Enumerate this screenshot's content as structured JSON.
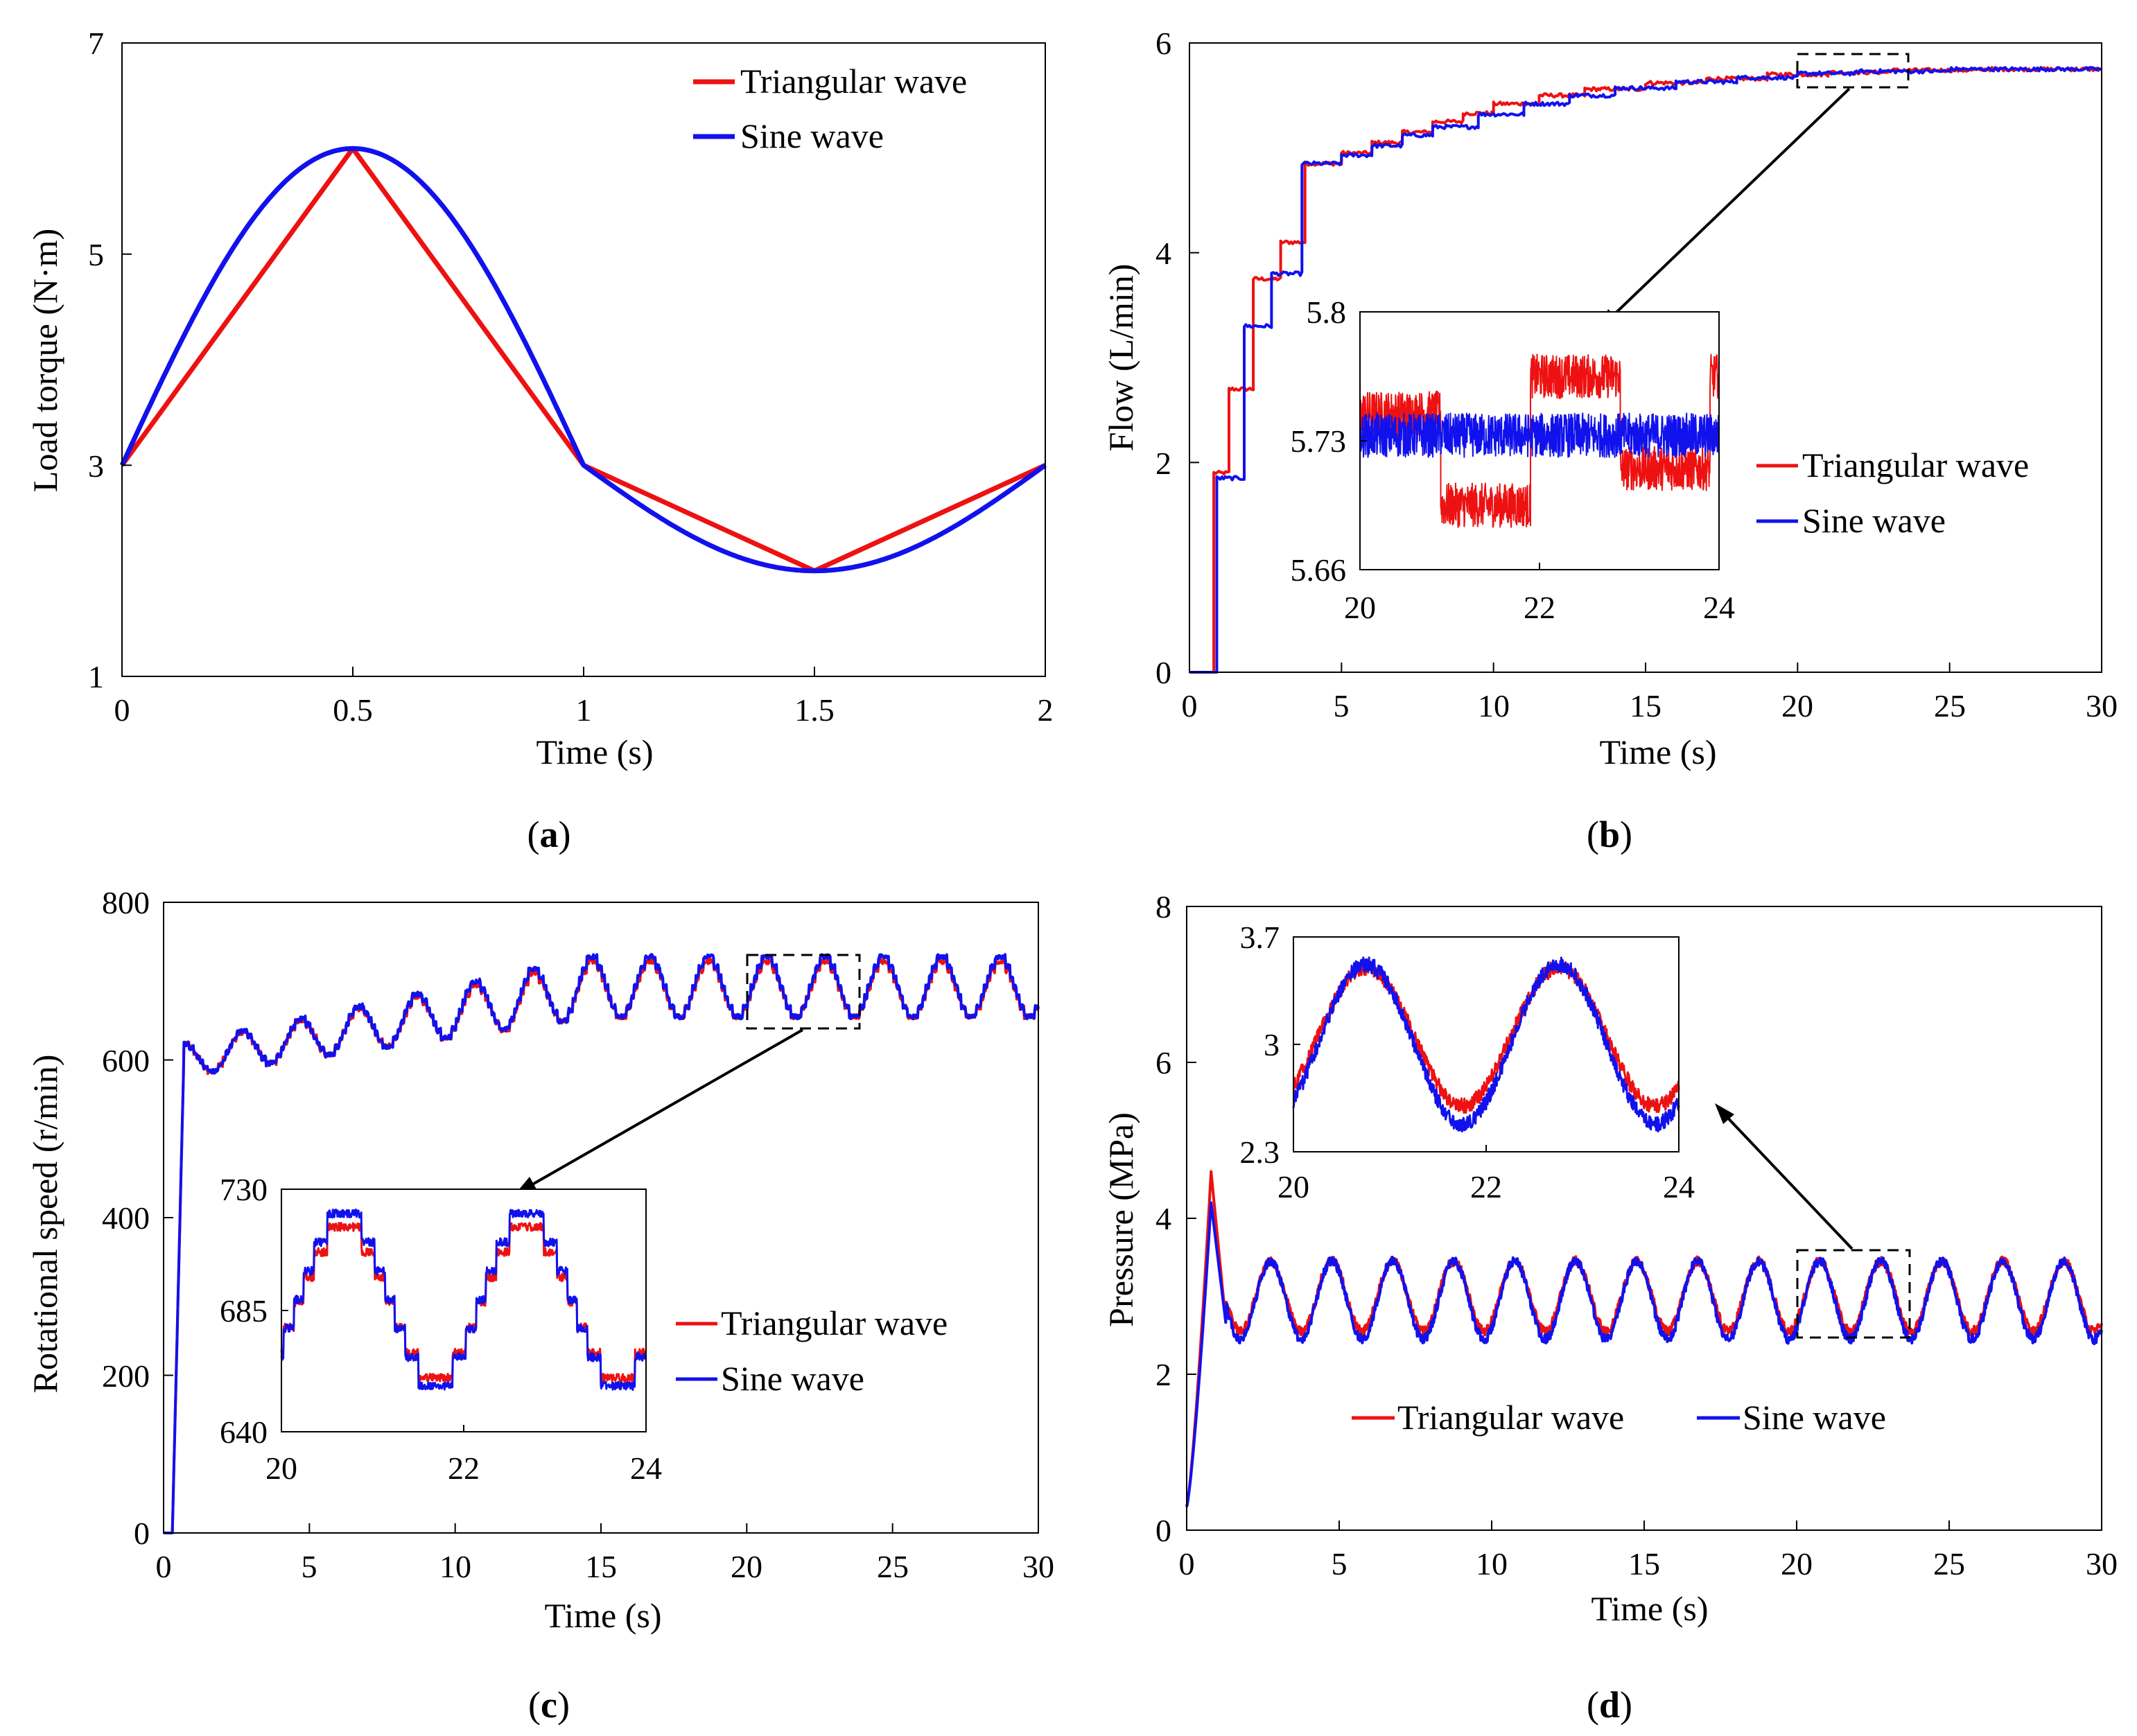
{
  "figure": {
    "panels": [
      {
        "id": "a",
        "caption_letter": "a"
      },
      {
        "id": "b",
        "caption_letter": "b"
      },
      {
        "id": "c",
        "caption_letter": "c"
      },
      {
        "id": "d",
        "caption_letter": "d"
      }
    ]
  },
  "chart_data": [
    {
      "panel": "a",
      "type": "line",
      "xlabel": "Time (s)",
      "ylabel": "Load torque (N·m)",
      "xlim": [
        0,
        2
      ],
      "ylim": [
        1,
        7
      ],
      "xticks": [
        0,
        0.5,
        1,
        1.5,
        2
      ],
      "xtick_labels": [
        "0",
        "0.5",
        "1",
        "1.5",
        "2"
      ],
      "yticks": [
        1,
        3,
        5,
        7
      ],
      "ytick_labels": [
        "1",
        "3",
        "5",
        "7"
      ],
      "legend": {
        "placement": "top-right",
        "labels": [
          "Triangular wave",
          "Sine wave"
        ]
      },
      "series": [
        {
          "name": "Triangular wave",
          "color": "#ee1111",
          "x": [
            0,
            0.5,
            1,
            1.5,
            2
          ],
          "y": [
            3,
            6,
            3,
            2,
            3
          ]
        },
        {
          "name": "Sine wave",
          "color": "#1111ee",
          "formula": "3+3*sin(pi*t) for t<=1; 3-1*sin(pi*(t-1)) for t>1",
          "x_range": [
            0,
            2
          ]
        }
      ]
    },
    {
      "panel": "b",
      "type": "line",
      "xlabel": "Time (s)",
      "ylabel": "Flow (L/min)",
      "xlim": [
        0,
        30
      ],
      "ylim": [
        0,
        6
      ],
      "xticks": [
        0,
        5,
        10,
        15,
        20,
        25,
        30
      ],
      "xtick_labels": [
        "0",
        "5",
        "10",
        "15",
        "20",
        "25",
        "30"
      ],
      "yticks": [
        0,
        2,
        4,
        6
      ],
      "ytick_labels": [
        "0",
        "2",
        "4",
        "6"
      ],
      "legend": {
        "placement": "middle-right",
        "labels": [
          "Triangular wave",
          "Sine wave"
        ]
      },
      "series": [
        {
          "name": "Triangular wave",
          "color": "#ee1111",
          "steps_x": [
            0,
            0.8,
            1.3,
            2.1,
            3.0,
            3.8,
            5,
            6,
            7,
            8,
            9,
            10,
            11.5,
            13,
            15,
            17,
            19,
            21,
            23,
            26,
            30
          ],
          "steps_y": [
            0,
            1.9,
            2.7,
            3.75,
            4.1,
            4.85,
            4.95,
            5.05,
            5.15,
            5.25,
            5.33,
            5.42,
            5.5,
            5.56,
            5.62,
            5.66,
            5.7,
            5.72,
            5.74,
            5.75,
            5.75
          ]
        },
        {
          "name": "Sine wave",
          "color": "#1111ee",
          "steps_x": [
            0,
            0.9,
            1.8,
            2.7,
            3.7,
            5,
            6,
            7,
            8,
            9.5,
            11,
            12.5,
            14,
            16,
            18,
            20,
            22,
            25,
            30
          ],
          "steps_y": [
            0,
            1.85,
            3.3,
            3.8,
            4.85,
            4.93,
            5.02,
            5.12,
            5.2,
            5.32,
            5.42,
            5.5,
            5.57,
            5.63,
            5.67,
            5.71,
            5.73,
            5.75,
            5.76
          ]
        }
      ],
      "inset": {
        "xlim": [
          20,
          24
        ],
        "ylim": [
          5.66,
          5.8
        ],
        "xtick_labels": [
          "20",
          "22",
          "24"
        ],
        "ytick_labels": [
          "5.66",
          "5.73",
          "5.8"
        ],
        "series": [
          {
            "name": "Triangular wave",
            "segments_x": [
              20,
              20.9,
              21.9,
              22.9,
              23.9,
              24
            ],
            "segments_y": [
              5.745,
              5.695,
              5.765,
              5.715,
              5.765
            ]
          },
          {
            "name": "Sine wave",
            "mean": 5.733,
            "noise": 0.012
          }
        ]
      }
    },
    {
      "panel": "c",
      "type": "line",
      "xlabel": "Time (s)",
      "ylabel": "Rotational speed (r/min)",
      "xlim": [
        0,
        30
      ],
      "ylim": [
        0,
        800
      ],
      "xticks": [
        0,
        5,
        10,
        15,
        20,
        25,
        30
      ],
      "xtick_labels": [
        "0",
        "5",
        "10",
        "15",
        "20",
        "25",
        "30"
      ],
      "yticks": [
        0,
        200,
        400,
        600,
        800
      ],
      "ytick_labels": [
        "0",
        "200",
        "400",
        "600",
        "800"
      ],
      "legend": {
        "placement": "middle-right",
        "labels": [
          "Triangular wave",
          "Sine wave"
        ]
      },
      "series": [
        {
          "name": "Triangular wave",
          "color": "#ee1111",
          "period_s": 2,
          "start_level": 600,
          "end_level": 690,
          "amplitude": 35
        },
        {
          "name": "Sine wave",
          "color": "#1111ee",
          "period_s": 2,
          "start_level": 600,
          "end_level": 693,
          "amplitude": 38
        }
      ],
      "inset": {
        "xlim": [
          20,
          24
        ],
        "ylim": [
          640,
          730
        ],
        "xtick_labels": [
          "20",
          "22",
          "24"
        ],
        "ytick_labels": [
          "640",
          "685",
          "730"
        ]
      }
    },
    {
      "panel": "d",
      "type": "line",
      "xlabel": "Time (s)",
      "ylabel": "Pressure (MPa)",
      "xlim": [
        0,
        30
      ],
      "ylim": [
        0,
        8
      ],
      "xticks": [
        0,
        5,
        10,
        15,
        20,
        25,
        30
      ],
      "xtick_labels": [
        "0",
        "5",
        "10",
        "15",
        "20",
        "25",
        "30"
      ],
      "yticks": [
        0,
        2,
        4,
        6,
        8
      ],
      "ytick_labels": [
        "0",
        "2",
        "4",
        "6",
        "8"
      ],
      "legend": {
        "placement": "bottom-center",
        "labels": [
          "Triangular wave",
          "Sine wave"
        ]
      },
      "series": [
        {
          "name": "Triangular wave",
          "color": "#ee1111",
          "period_s": 2,
          "mean": 3.0,
          "amplitude": 0.45,
          "peak": 4.6
        },
        {
          "name": "Sine wave",
          "color": "#1111ee",
          "period_s": 2,
          "mean": 2.95,
          "amplitude": 0.5,
          "peak": 4.2
        }
      ],
      "inset": {
        "xlim": [
          20,
          24
        ],
        "ylim": [
          2.3,
          3.7
        ],
        "xtick_labels": [
          "20",
          "22",
          "24"
        ],
        "ytick_labels": [
          "2.3",
          "3",
          "3.7"
        ]
      }
    }
  ]
}
